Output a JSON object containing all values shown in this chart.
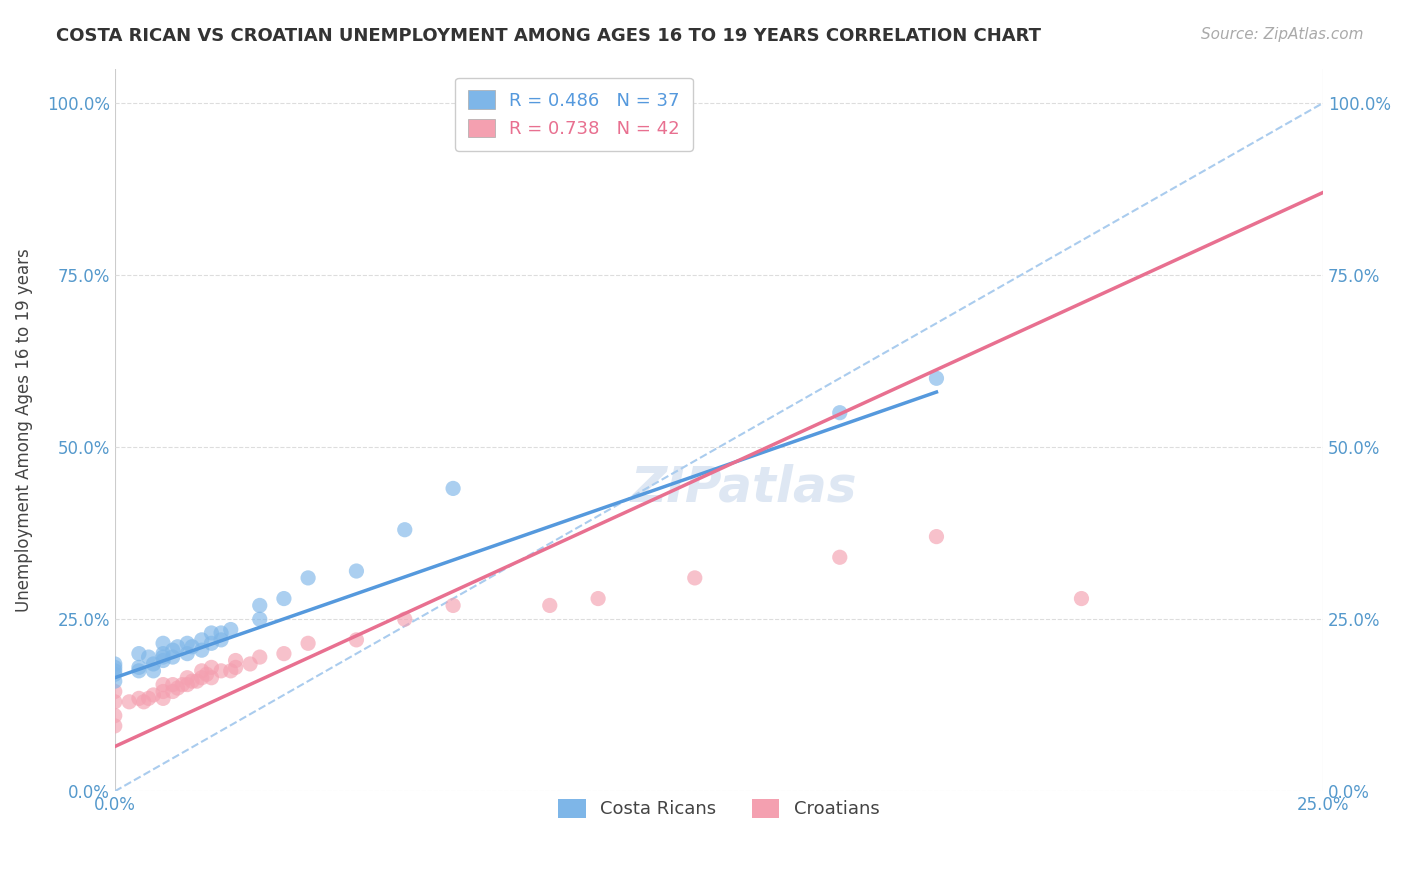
{
  "title": "COSTA RICAN VS CROATIAN UNEMPLOYMENT AMONG AGES 16 TO 19 YEARS CORRELATION CHART",
  "source": "Source: ZipAtlas.com",
  "ylabel": "Unemployment Among Ages 16 to 19 years",
  "background_color": "#FFFFFF",
  "grid_color": "#DDDDDD",
  "watermark_text": "ZIPatlas",
  "legend_label_cr": "Costa Ricans",
  "legend_label_hr": "Croatians",
  "cr_R": 0.486,
  "cr_N": 37,
  "hr_R": 0.738,
  "hr_N": 42,
  "cr_color": "#7EB6E8",
  "hr_color": "#F4A0B0",
  "cr_line_color": "#5599DD",
  "hr_line_color": "#E87090",
  "dashed_line_color": "#AACCEE",
  "xmin": 0.0,
  "xmax": 0.25,
  "ymin": 0.0,
  "ymax": 1.05,
  "xticks": [
    0.0,
    0.25
  ],
  "yticks": [
    0.0,
    0.25,
    0.5,
    0.75,
    1.0
  ],
  "cr_scatter_x": [
    0.0,
    0.0,
    0.0,
    0.0,
    0.0,
    0.005,
    0.005,
    0.005,
    0.007,
    0.008,
    0.008,
    0.01,
    0.01,
    0.01,
    0.01,
    0.012,
    0.012,
    0.013,
    0.015,
    0.015,
    0.016,
    0.018,
    0.018,
    0.02,
    0.02,
    0.022,
    0.022,
    0.024,
    0.03,
    0.03,
    0.035,
    0.04,
    0.05,
    0.06,
    0.07,
    0.15,
    0.17
  ],
  "cr_scatter_y": [
    0.16,
    0.17,
    0.175,
    0.18,
    0.185,
    0.175,
    0.18,
    0.2,
    0.195,
    0.175,
    0.185,
    0.19,
    0.195,
    0.2,
    0.215,
    0.195,
    0.205,
    0.21,
    0.2,
    0.215,
    0.21,
    0.205,
    0.22,
    0.215,
    0.23,
    0.22,
    0.23,
    0.235,
    0.25,
    0.27,
    0.28,
    0.31,
    0.32,
    0.38,
    0.44,
    0.55,
    0.6
  ],
  "hr_scatter_x": [
    0.0,
    0.0,
    0.0,
    0.0,
    0.003,
    0.005,
    0.006,
    0.007,
    0.008,
    0.01,
    0.01,
    0.01,
    0.012,
    0.012,
    0.013,
    0.014,
    0.015,
    0.015,
    0.016,
    0.017,
    0.018,
    0.018,
    0.019,
    0.02,
    0.02,
    0.022,
    0.024,
    0.025,
    0.025,
    0.028,
    0.03,
    0.035,
    0.04,
    0.05,
    0.06,
    0.07,
    0.09,
    0.1,
    0.12,
    0.15,
    0.17,
    0.2
  ],
  "hr_scatter_y": [
    0.095,
    0.11,
    0.13,
    0.145,
    0.13,
    0.135,
    0.13,
    0.135,
    0.14,
    0.135,
    0.145,
    0.155,
    0.145,
    0.155,
    0.15,
    0.155,
    0.155,
    0.165,
    0.16,
    0.16,
    0.165,
    0.175,
    0.17,
    0.165,
    0.18,
    0.175,
    0.175,
    0.18,
    0.19,
    0.185,
    0.195,
    0.2,
    0.215,
    0.22,
    0.25,
    0.27,
    0.27,
    0.28,
    0.31,
    0.34,
    0.37,
    0.28
  ],
  "cr_line_x": [
    0.0,
    0.17
  ],
  "cr_line_y": [
    0.165,
    0.58
  ],
  "hr_line_x": [
    0.0,
    0.25
  ],
  "hr_line_y": [
    0.065,
    0.87
  ],
  "diag_line_x": [
    0.0,
    0.25
  ],
  "diag_line_y": [
    0.0,
    1.0
  ],
  "title_fontsize": 13,
  "source_fontsize": 11,
  "axis_label_fontsize": 12,
  "tick_fontsize": 12,
  "legend_fontsize": 13,
  "watermark_fontsize": 36,
  "watermark_color": "#C8D8EC",
  "watermark_alpha": 0.6
}
